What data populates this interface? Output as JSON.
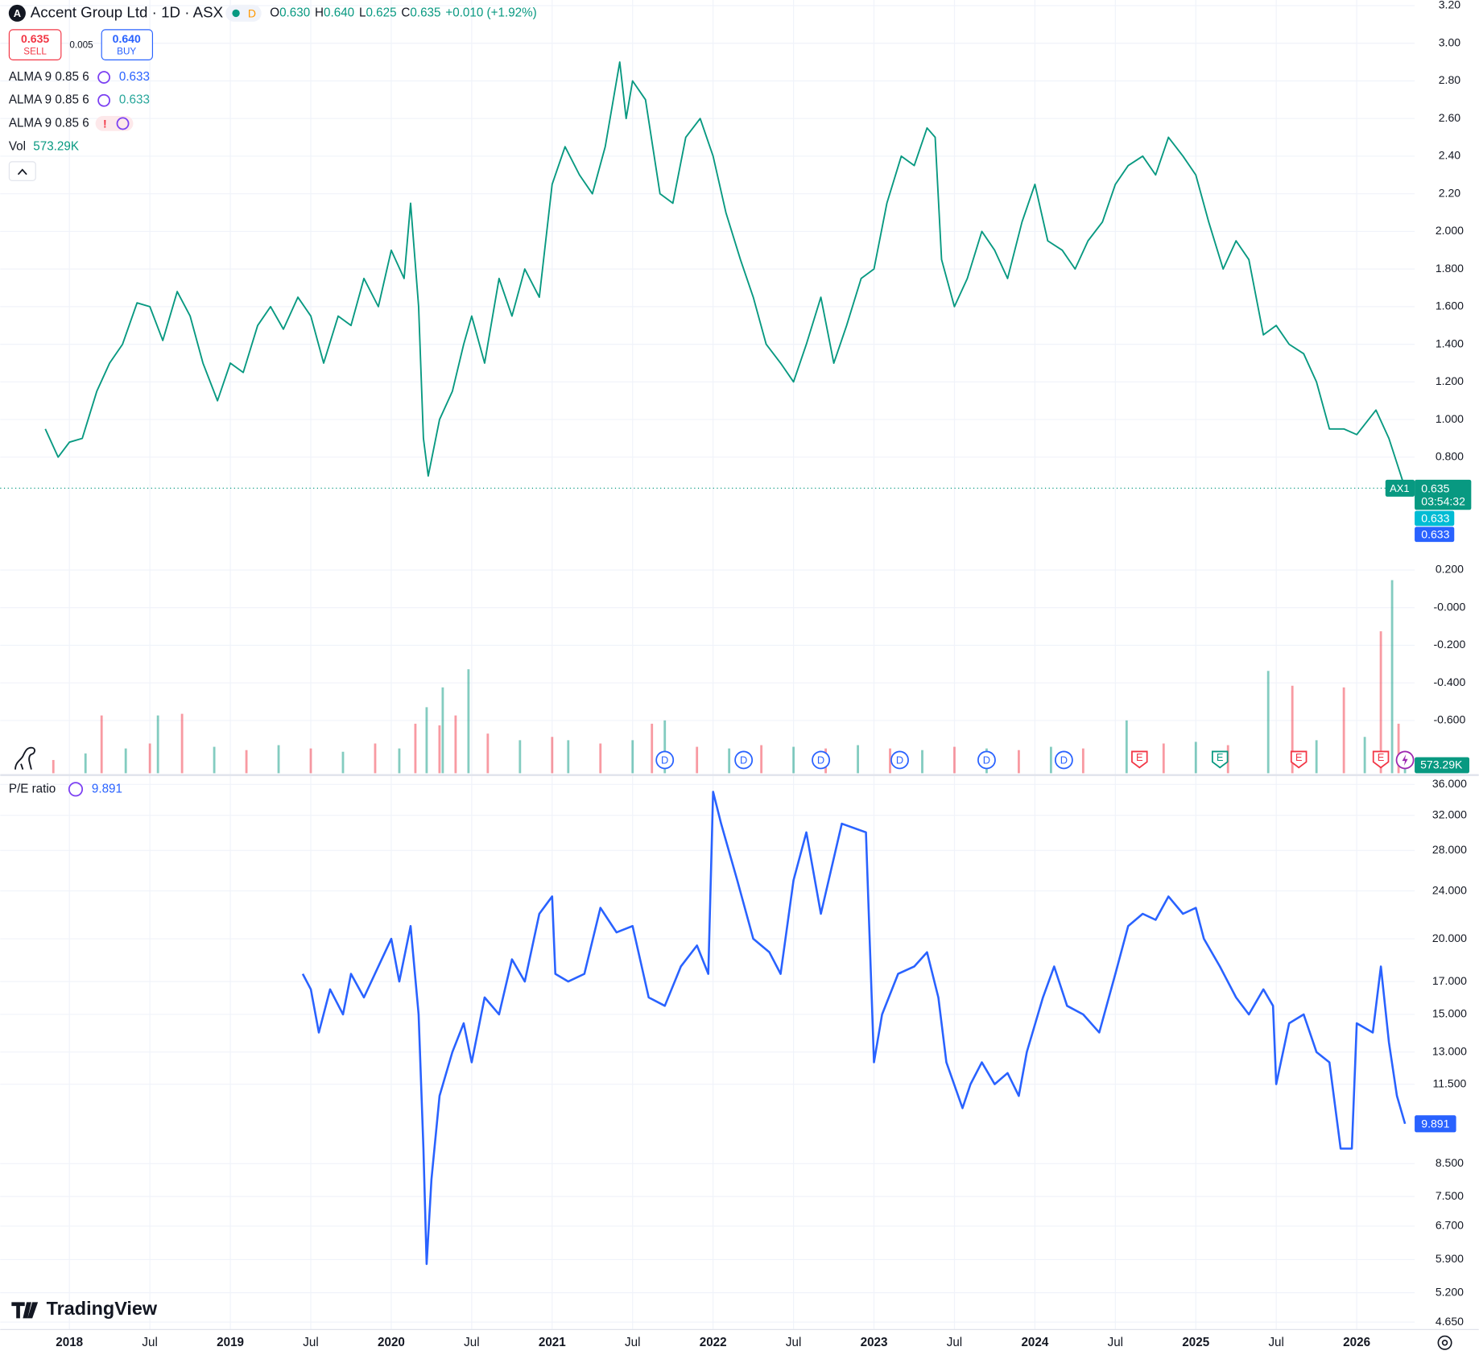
{
  "legend": {
    "symbol": "Accent Group Ltd · 1D · ASX",
    "symbol_icon": "A",
    "badge": "D",
    "o_label": "O",
    "o": "0.630",
    "h_label": "H",
    "h": "0.640",
    "l_label": "L",
    "l": "0.625",
    "c_label": "C",
    "c": "0.635",
    "change": "+0.010 (+1.92%)",
    "sell_price": "0.635",
    "sell": "SELL",
    "spread": "0.005",
    "buy_price": "0.640",
    "buy": "BUY",
    "indicators": [
      {
        "name": "ALMA 9 0.85 6",
        "value": 0.633,
        "color": "#2962ff"
      },
      {
        "name": "ALMA 9 0.85 6",
        "value": 0.633,
        "color": "#26a69a"
      },
      {
        "name": "ALMA 9 0.85 6",
        "warning": "!"
      }
    ],
    "vol_name": "Vol",
    "vol_value": "573.29K",
    "pe_name": "P/E ratio",
    "logo": "TradingView"
  },
  "chart_data": [
    {
      "type": "line",
      "color": "#089981",
      "xlim": [
        2017.57,
        2026.36
      ],
      "ylim": [
        -0.88,
        3.23
      ],
      "yticks": [
        {
          "value": 3.2,
          "label": "3.20"
        },
        {
          "value": 3.0,
          "label": "3.00"
        },
        {
          "value": 2.8,
          "label": "2.80"
        },
        {
          "value": 2.6,
          "label": "2.60"
        },
        {
          "value": 2.4,
          "label": "2.40"
        },
        {
          "value": 2.2,
          "label": "2.20"
        },
        {
          "value": 2.0,
          "label": "2.000"
        },
        {
          "value": 1.8,
          "label": "1.800"
        },
        {
          "value": 1.6,
          "label": "1.600"
        },
        {
          "value": 1.4,
          "label": "1.400"
        },
        {
          "value": 1.2,
          "label": "1.200"
        },
        {
          "value": 1.0,
          "label": "1.000"
        },
        {
          "value": 0.8,
          "label": "0.800"
        },
        {
          "value": 0.2,
          "label": "0.200"
        },
        {
          "value": 0,
          "label": "-0.000"
        },
        {
          "value": -0.2,
          "label": "-0.200"
        },
        {
          "value": -0.4,
          "label": "-0.400"
        },
        {
          "value": -0.6,
          "label": "-0.600"
        }
      ],
      "x": [
        2017.85,
        2017.93,
        2018.0,
        2018.08,
        2018.17,
        2018.25,
        2018.33,
        2018.42,
        2018.5,
        2018.58,
        2018.67,
        2018.75,
        2018.83,
        2018.92,
        2019.0,
        2019.08,
        2019.17,
        2019.25,
        2019.33,
        2019.42,
        2019.5,
        2019.58,
        2019.67,
        2019.75,
        2019.83,
        2019.92,
        2020.0,
        2020.08,
        2020.12,
        2020.17,
        2020.2,
        2020.23,
        2020.3,
        2020.38,
        2020.45,
        2020.5,
        2020.58,
        2020.67,
        2020.75,
        2020.83,
        2020.92,
        2021.0,
        2021.08,
        2021.17,
        2021.25,
        2021.33,
        2021.42,
        2021.46,
        2021.5,
        2021.58,
        2021.67,
        2021.75,
        2021.83,
        2021.92,
        2022.0,
        2022.08,
        2022.17,
        2022.25,
        2022.33,
        2022.42,
        2022.5,
        2022.58,
        2022.67,
        2022.75,
        2022.83,
        2022.92,
        2023.0,
        2023.08,
        2023.17,
        2023.25,
        2023.33,
        2023.38,
        2023.42,
        2023.5,
        2023.58,
        2023.67,
        2023.75,
        2023.83,
        2023.92,
        2024.0,
        2024.08,
        2024.17,
        2024.25,
        2024.33,
        2024.42,
        2024.5,
        2024.58,
        2024.67,
        2024.75,
        2024.83,
        2024.92,
        2025.0,
        2025.08,
        2025.17,
        2025.25,
        2025.33,
        2025.42,
        2025.5,
        2025.58,
        2025.67,
        2025.75,
        2025.83,
        2025.92,
        2026.0,
        2026.12,
        2026.2,
        2026.3
      ],
      "values": [
        0.95,
        0.8,
        0.88,
        0.9,
        1.15,
        1.3,
        1.4,
        1.62,
        1.6,
        1.42,
        1.68,
        1.55,
        1.3,
        1.1,
        1.3,
        1.25,
        1.5,
        1.6,
        1.48,
        1.65,
        1.55,
        1.3,
        1.55,
        1.5,
        1.75,
        1.6,
        1.9,
        1.75,
        2.15,
        1.6,
        0.9,
        0.7,
        1.0,
        1.15,
        1.4,
        1.55,
        1.3,
        1.75,
        1.55,
        1.8,
        1.65,
        2.25,
        2.45,
        2.3,
        2.2,
        2.45,
        2.9,
        2.6,
        2.8,
        2.7,
        2.2,
        2.15,
        2.5,
        2.6,
        2.4,
        2.1,
        1.85,
        1.65,
        1.4,
        1.3,
        1.2,
        1.4,
        1.65,
        1.3,
        1.5,
        1.75,
        1.8,
        2.15,
        2.4,
        2.35,
        2.55,
        2.5,
        1.85,
        1.6,
        1.75,
        2.0,
        1.9,
        1.75,
        2.05,
        2.25,
        1.95,
        1.9,
        1.8,
        1.95,
        2.05,
        2.25,
        2.35,
        2.4,
        2.3,
        2.5,
        2.4,
        2.3,
        2.05,
        1.8,
        1.95,
        1.85,
        1.45,
        1.5,
        1.4,
        1.35,
        1.2,
        0.95,
        0.95,
        0.92,
        1.05,
        0.9,
        0.635
      ],
      "last": 0.635,
      "tag": "AX1",
      "countdown": "03:54:32",
      "last_color": "#089981",
      "alma_tags": [
        {
          "value": 0.633,
          "color": "#00bcd4"
        },
        {
          "value": 0.633,
          "color": "#2962ff"
        }
      ],
      "events": [
        {
          "x": 2021.7,
          "label": "D",
          "color": "#2962ff"
        },
        {
          "x": 2022.19,
          "label": "D",
          "color": "#2962ff"
        },
        {
          "x": 2022.67,
          "label": "D",
          "color": "#2962ff"
        },
        {
          "x": 2023.16,
          "label": "D",
          "color": "#2962ff"
        },
        {
          "x": 2023.7,
          "label": "D",
          "color": "#2962ff"
        },
        {
          "x": 2024.18,
          "label": "D",
          "color": "#2962ff"
        },
        {
          "x": 2024.65,
          "label": "E",
          "color": "#f23645"
        },
        {
          "x": 2025.15,
          "label": "E",
          "color": "#089981"
        },
        {
          "x": 2025.64,
          "label": "E",
          "color": "#f23645"
        },
        {
          "x": 2026.15,
          "label": "E",
          "color": "#f23645"
        },
        {
          "x": 2026.3,
          "color": "#9c27b0"
        }
      ]
    },
    {
      "type": "bar",
      "xlim": [
        2017.57,
        2026.36
      ],
      "ylim": [
        0,
        12000000
      ],
      "colors": [
        "#f2364580",
        "#08998180"
      ],
      "x": [
        2017.9,
        2018.1,
        2018.2,
        2018.35,
        2018.5,
        2018.55,
        2018.7,
        2018.9,
        2019.1,
        2019.3,
        2019.5,
        2019.7,
        2019.9,
        2020.05,
        2020.15,
        2020.22,
        2020.3,
        2020.32,
        2020.4,
        2020.48,
        2020.6,
        2020.8,
        2021.0,
        2021.1,
        2021.3,
        2021.5,
        2021.62,
        2021.7,
        2021.9,
        2022.1,
        2022.3,
        2022.5,
        2022.7,
        2022.9,
        2023.1,
        2023.3,
        2023.5,
        2023.7,
        2023.9,
        2024.1,
        2024.3,
        2024.57,
        2024.8,
        2025.0,
        2025.2,
        2025.45,
        2025.6,
        2025.75,
        2025.92,
        2026.05,
        2026.15,
        2026.22,
        2026.26,
        2026.3
      ],
      "values": [
        800000,
        1200000,
        3500000,
        1500000,
        1800000,
        3500000,
        3600000,
        1600000,
        1400000,
        1700000,
        1500000,
        1300000,
        1800000,
        1500000,
        3000000,
        4000000,
        2900000,
        5200000,
        3500000,
        6300000,
        2400000,
        2000000,
        2200000,
        2000000,
        1800000,
        2000000,
        3000000,
        3200000,
        1600000,
        1500000,
        1700000,
        1600000,
        1500000,
        1700000,
        1500000,
        1400000,
        1600000,
        1500000,
        1400000,
        1600000,
        1500000,
        3200000,
        1800000,
        1900000,
        1700000,
        6200000,
        5300000,
        2000000,
        5200000,
        2200000,
        8600000,
        11700000,
        3000000,
        573290
      ],
      "last_color": "#089981"
    },
    {
      "type": "line",
      "color": "#2962ff",
      "log_scale": true,
      "xlim": [
        2017.57,
        2026.36
      ],
      "ylim": [
        4.52,
        37.3
      ],
      "xticks": [
        2018,
        {
          "value": 2018.5,
          "label": "Jul"
        },
        2019,
        {
          "value": 2019.5,
          "label": "Jul"
        },
        2020,
        {
          "value": 2020.5,
          "label": "Jul"
        },
        2021,
        {
          "value": 2021.5,
          "label": "Jul"
        },
        2022,
        {
          "value": 2022.5,
          "label": "Jul"
        },
        2023,
        {
          "value": 2023.5,
          "label": "Jul"
        },
        2024,
        {
          "value": 2024.5,
          "label": "Jul"
        },
        2025,
        {
          "value": 2025.5,
          "label": "Jul"
        },
        2026
      ],
      "yticks": [
        {
          "value": 36,
          "label": "36.000"
        },
        {
          "value": 32,
          "label": "32.000"
        },
        {
          "value": 28,
          "label": "28.000"
        },
        {
          "value": 24,
          "label": "24.000"
        },
        {
          "value": 20,
          "label": "20.000"
        },
        {
          "value": 17,
          "label": "17.000"
        },
        {
          "value": 15,
          "label": "15.000"
        },
        {
          "value": 13,
          "label": "13.000"
        },
        {
          "value": 11.5,
          "label": "11.500"
        },
        {
          "value": 8.5,
          "label": "8.500"
        },
        {
          "value": 7.5,
          "label": "7.500"
        },
        {
          "value": 6.7,
          "label": "6.700"
        },
        {
          "value": 5.9,
          "label": "5.900"
        },
        {
          "value": 5.2,
          "label": "5.200"
        },
        {
          "value": 4.65,
          "label": "4.650"
        }
      ],
      "x": [
        2019.45,
        2019.5,
        2019.55,
        2019.62,
        2019.7,
        2019.75,
        2019.83,
        2019.92,
        2020.0,
        2020.05,
        2020.12,
        2020.17,
        2020.2,
        2020.22,
        2020.25,
        2020.3,
        2020.38,
        2020.45,
        2020.5,
        2020.58,
        2020.67,
        2020.75,
        2020.83,
        2020.92,
        2021.0,
        2021.02,
        2021.1,
        2021.2,
        2021.3,
        2021.4,
        2021.5,
        2021.6,
        2021.7,
        2021.8,
        2021.9,
        2021.97,
        2022.0,
        2022.05,
        2022.15,
        2022.25,
        2022.35,
        2022.42,
        2022.5,
        2022.58,
        2022.67,
        2022.8,
        2022.95,
        2023.0,
        2023.05,
        2023.15,
        2023.25,
        2023.33,
        2023.4,
        2023.45,
        2023.55,
        2023.6,
        2023.67,
        2023.75,
        2023.83,
        2023.9,
        2023.95,
        2024.05,
        2024.12,
        2024.2,
        2024.3,
        2024.4,
        2024.5,
        2024.58,
        2024.67,
        2024.75,
        2024.83,
        2024.92,
        2025.0,
        2025.05,
        2025.15,
        2025.25,
        2025.33,
        2025.42,
        2025.48,
        2025.5,
        2025.58,
        2025.67,
        2025.75,
        2025.83,
        2025.9,
        2025.97,
        2026.0,
        2026.1,
        2026.15,
        2026.2,
        2026.25,
        2026.3
      ],
      "values": [
        17.5,
        16.5,
        14.0,
        16.5,
        15.0,
        17.5,
        16.0,
        18.0,
        20.0,
        17.0,
        21.0,
        15.0,
        9.0,
        5.8,
        8.0,
        11.0,
        13.0,
        14.5,
        12.5,
        16.0,
        15.0,
        18.5,
        17.0,
        22.0,
        23.5,
        17.5,
        17.0,
        17.5,
        22.5,
        20.5,
        21.0,
        16.0,
        15.5,
        18.0,
        19.5,
        17.5,
        35.0,
        31.0,
        25.0,
        20.0,
        19.0,
        17.5,
        25.0,
        30.0,
        22.0,
        31.0,
        30.0,
        12.5,
        15.0,
        17.5,
        18.0,
        19.0,
        16.0,
        12.5,
        10.5,
        11.5,
        12.5,
        11.5,
        12.0,
        11.0,
        13.0,
        16.0,
        18.0,
        15.5,
        15.0,
        14.0,
        17.5,
        21.0,
        22.0,
        21.5,
        23.5,
        22.0,
        22.5,
        20.0,
        18.0,
        16.0,
        15.0,
        16.5,
        15.5,
        11.5,
        14.5,
        15.0,
        13.0,
        12.5,
        9.0,
        9.0,
        14.5,
        14.0,
        18.0,
        13.5,
        11.0,
        9.891
      ]
    }
  ]
}
